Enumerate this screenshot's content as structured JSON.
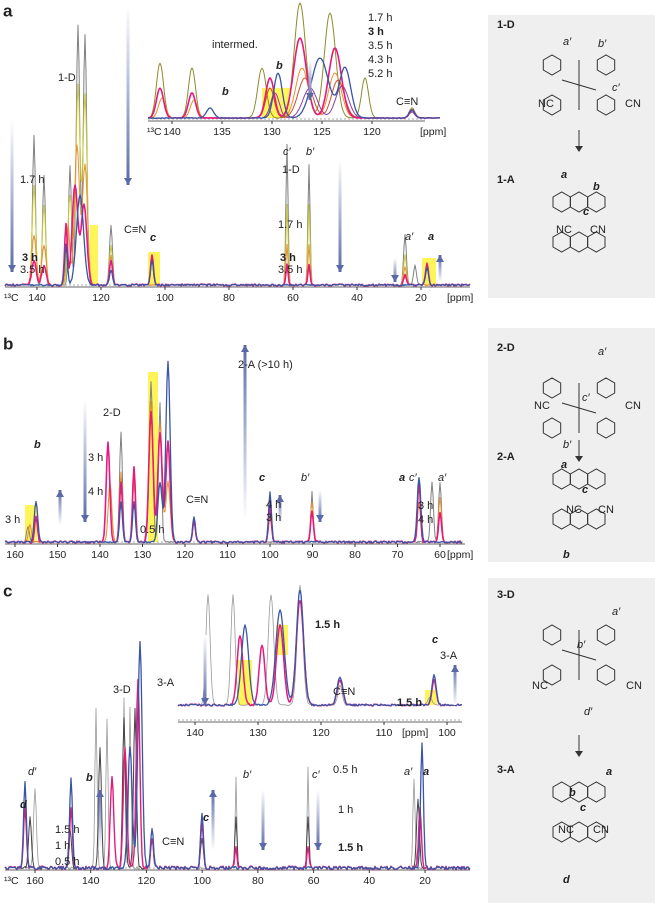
{
  "panels": [
    {
      "label": "a",
      "axis": {
        "nucleus": "¹³C",
        "ticks": [
          140,
          120,
          100,
          80,
          60,
          40,
          20
        ],
        "unit": "[ppm]"
      },
      "labels": [
        "1-D",
        "1.7 h",
        "3 h",
        "3.5 h",
        "C≡N",
        "c",
        "c′",
        "1-D",
        "1.7 h",
        "b′",
        "3 h",
        "3.5 h",
        "a′",
        "a"
      ],
      "inset": {
        "axis": {
          "nucleus": "¹³C",
          "ticks": [
            140,
            135,
            130,
            125,
            120
          ],
          "unit": "[ppm]"
        },
        "legend": [
          "1.7 h",
          "3 h",
          "3.5 h",
          "4.3 h",
          "5.2 h"
        ],
        "labels": [
          "intermed.",
          "b",
          "b",
          "C≡N"
        ]
      },
      "scheme": {
        "reactant": "1-D",
        "product": "1-A",
        "labels": [
          "a′",
          "b′",
          "c′",
          "NC",
          "CN",
          "a",
          "b",
          "c",
          "NC",
          "CN"
        ]
      }
    },
    {
      "label": "b",
      "axis": {
        "ticks": [
          160,
          150,
          140,
          130,
          120,
          110,
          100,
          90,
          80,
          70,
          60
        ],
        "unit": "[ppm]"
      },
      "labels": [
        "2-A (>10 h)",
        "2-D",
        "3 h",
        "4 h",
        "C≡N",
        "0.5 h",
        "3 h",
        "b",
        "c",
        "b′",
        "4 h",
        "3 h",
        "a",
        "c′",
        "a′",
        "3 h",
        "4 h"
      ],
      "scheme": {
        "reactant": "2-D",
        "product": "2-A",
        "labels": [
          "a′",
          "c′",
          "NC",
          "CN",
          "b′",
          "a",
          "c",
          "NC",
          "CN",
          "b"
        ]
      }
    },
    {
      "label": "c",
      "axis": {
        "nucleus": "¹³C",
        "ticks": [
          160,
          140,
          120,
          100,
          80,
          60,
          40,
          20
        ]
      },
      "labels": [
        "3-D",
        "3-A",
        "d′",
        "d",
        "b",
        "1.5 h",
        "1 h",
        "0.5 h",
        "C≡N",
        "c",
        "b′",
        "c′",
        "0.5 h",
        "1 h",
        "1.5 h",
        "a′",
        "a"
      ],
      "inset": {
        "axis": {
          "ticks": [
            140,
            130,
            120,
            110,
            100
          ],
          "unit": "[ppm]"
        },
        "labels": [
          "1.5 h",
          "C≡N",
          "1.5 h",
          "c",
          "3-A"
        ]
      },
      "scheme": {
        "reactant": "3-D",
        "product": "3-A",
        "labels": [
          "a′",
          "b′",
          "NC",
          "CN",
          "d′",
          "a",
          "b",
          "c",
          "NC",
          "CN",
          "d"
        ]
      }
    }
  ]
}
